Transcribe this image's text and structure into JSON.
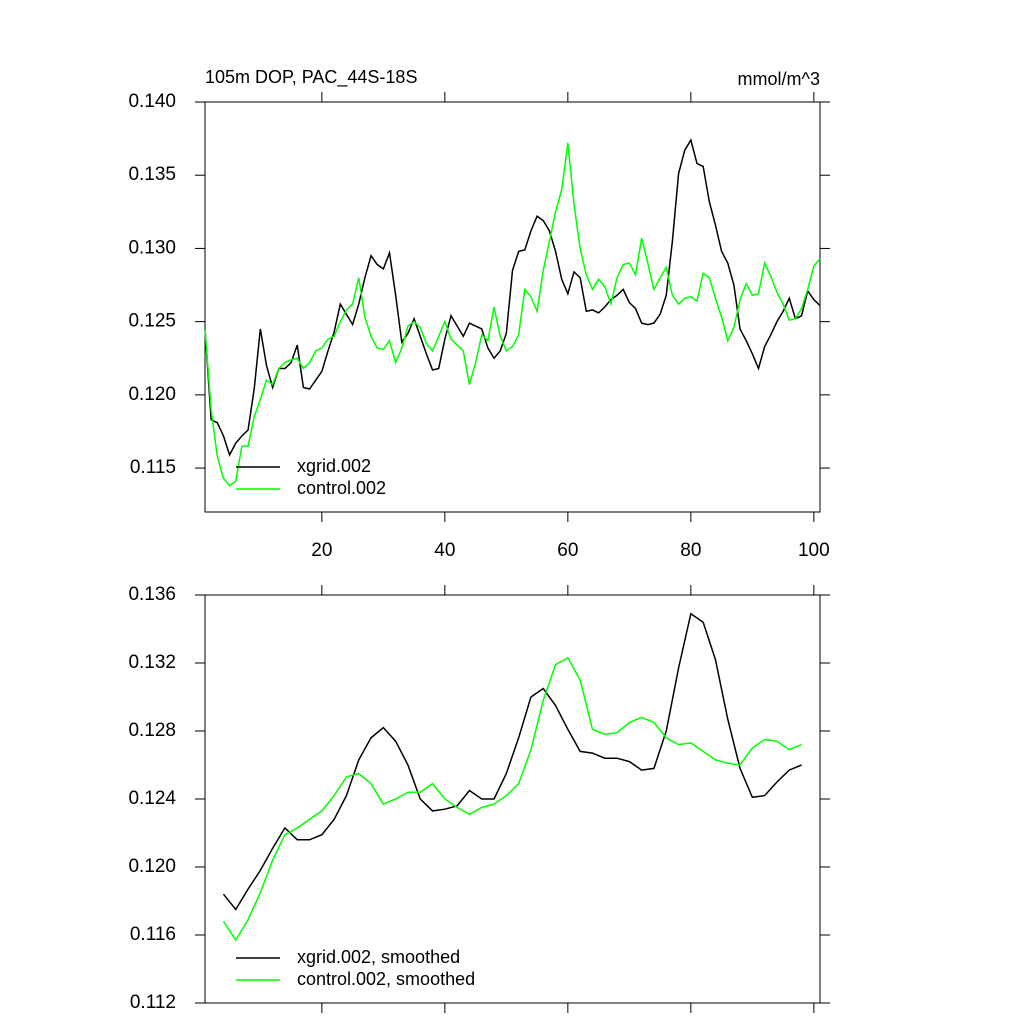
{
  "chart_data": [
    {
      "type": "line",
      "title": "105m DOP, PAC_44S-18S",
      "units": "mmol/m^3",
      "x": [
        1,
        2,
        3,
        4,
        5,
        6,
        7,
        8,
        9,
        10,
        11,
        12,
        13,
        14,
        15,
        16,
        17,
        18,
        19,
        20,
        21,
        22,
        23,
        24,
        25,
        26,
        27,
        28,
        29,
        30,
        31,
        32,
        33,
        34,
        35,
        36,
        37,
        38,
        39,
        40,
        41,
        42,
        43,
        44,
        45,
        46,
        47,
        48,
        49,
        50,
        51,
        52,
        53,
        54,
        55,
        56,
        57,
        58,
        59,
        60,
        61,
        62,
        63,
        64,
        65,
        66,
        67,
        68,
        69,
        70,
        71,
        72,
        73,
        74,
        75,
        76,
        77,
        78,
        79,
        80,
        81,
        82,
        83,
        84,
        85,
        86,
        87,
        88,
        89,
        90,
        91,
        92,
        93,
        94,
        95,
        96,
        97,
        98,
        99,
        100,
        101
      ],
      "series": [
        {
          "name": "xgrid.002",
          "color": "#000000",
          "values": [
            0.1245,
            0.1183,
            0.1181,
            0.1172,
            0.1159,
            0.1167,
            0.1172,
            0.1176,
            0.1204,
            0.1245,
            0.122,
            0.1205,
            0.1218,
            0.1218,
            0.1222,
            0.1234,
            0.1205,
            0.1204,
            0.121,
            0.1216,
            0.123,
            0.1243,
            0.1262,
            0.1255,
            0.1248,
            0.1262,
            0.128,
            0.1295,
            0.1289,
            0.1286,
            0.1297,
            0.1268,
            0.1236,
            0.1242,
            0.1252,
            0.124,
            0.1228,
            0.1217,
            0.1218,
            0.1238,
            0.1254,
            0.1247,
            0.124,
            0.1249,
            0.1247,
            0.1245,
            0.1232,
            0.1225,
            0.123,
            0.1242,
            0.1285,
            0.1298,
            0.1299,
            0.1312,
            0.1322,
            0.1319,
            0.1312,
            0.1298,
            0.1279,
            0.1269,
            0.1284,
            0.128,
            0.1257,
            0.1258,
            0.1256,
            0.126,
            0.1265,
            0.1268,
            0.1272,
            0.1263,
            0.1259,
            0.1249,
            0.1248,
            0.1249,
            0.1255,
            0.1268,
            0.1305,
            0.1351,
            0.1367,
            0.1374,
            0.1358,
            0.1356,
            0.1332,
            0.1316,
            0.1298,
            0.129,
            0.1275,
            0.1245,
            0.1237,
            0.1228,
            0.1218,
            0.1233,
            0.1241,
            0.125,
            0.1257,
            0.1266,
            0.1252,
            0.1254,
            0.1271,
            0.1265,
            0.1261
          ]
        },
        {
          "name": "control.002",
          "color": "#00ff00",
          "values": [
            0.1245,
            0.119,
            0.1158,
            0.1143,
            0.1138,
            0.1141,
            0.1165,
            0.1165,
            0.1185,
            0.1197,
            0.121,
            0.1207,
            0.1218,
            0.1222,
            0.1224,
            0.1225,
            0.1218,
            0.1222,
            0.123,
            0.1232,
            0.1238,
            0.124,
            0.125,
            0.1258,
            0.1262,
            0.128,
            0.1253,
            0.124,
            0.1232,
            0.1231,
            0.1237,
            0.1222,
            0.1232,
            0.1247,
            0.125,
            0.1246,
            0.1235,
            0.123,
            0.124,
            0.125,
            0.1238,
            0.1234,
            0.123,
            0.1207,
            0.1222,
            0.1241,
            0.1237,
            0.126,
            0.124,
            0.123,
            0.1233,
            0.1241,
            0.1272,
            0.1267,
            0.1257,
            0.1285,
            0.1305,
            0.1325,
            0.134,
            0.1372,
            0.133,
            0.13,
            0.1282,
            0.1272,
            0.1279,
            0.1274,
            0.1262,
            0.128,
            0.1289,
            0.129,
            0.1282,
            0.1307,
            0.129,
            0.1272,
            0.128,
            0.1287,
            0.1268,
            0.1262,
            0.1266,
            0.1267,
            0.1264,
            0.1283,
            0.128,
            0.1266,
            0.1253,
            0.1237,
            0.1246,
            0.1265,
            0.1276,
            0.1268,
            0.1269,
            0.129,
            0.1281,
            0.127,
            0.1262,
            0.1251,
            0.1252,
            0.1259,
            0.1272,
            0.1288,
            0.1293
          ]
        }
      ],
      "xlim": [
        1,
        101
      ],
      "xticks": [
        20,
        40,
        60,
        80,
        100
      ],
      "ylim": [
        0.112,
        0.14
      ],
      "yticks": [
        {
          "value": 0.14,
          "label": "0.140"
        },
        0.135,
        {
          "value": 0.13,
          "label": "0.130"
        },
        0.125,
        {
          "value": 0.12,
          "label": "0.120"
        },
        0.115
      ],
      "legend": "lower left"
    },
    {
      "type": "line",
      "x": [
        4,
        6,
        8,
        10,
        12,
        14,
        16,
        18,
        20,
        22,
        24,
        26,
        28,
        30,
        32,
        34,
        36,
        38,
        40,
        42,
        44,
        46,
        48,
        50,
        52,
        54,
        56,
        58,
        60,
        62,
        64,
        66,
        68,
        70,
        72,
        74,
        76,
        78,
        80,
        82,
        84,
        86,
        88,
        90,
        92,
        94,
        96,
        98
      ],
      "series": [
        {
          "name": "xgrid.002, smoothed",
          "color": "#000000",
          "values": [
            0.1184,
            0.1175,
            0.1187,
            0.1198,
            0.1211,
            0.1223,
            0.1216,
            0.1216,
            0.1219,
            0.1228,
            0.1242,
            0.1263,
            0.1276,
            0.1282,
            0.1274,
            0.126,
            0.124,
            0.1233,
            0.1234,
            0.1236,
            0.1245,
            0.124,
            0.124,
            0.1255,
            0.1276,
            0.13,
            0.1305,
            0.1295,
            0.1281,
            0.1268,
            0.1267,
            0.1264,
            0.1264,
            0.1262,
            0.1257,
            0.1258,
            0.128,
            0.1317,
            0.1349,
            0.1344,
            0.1322,
            0.1287,
            0.1258,
            0.1241,
            0.1242,
            0.125,
            0.1257,
            0.126
          ]
        },
        {
          "name": "control.002, smoothed",
          "color": "#00ff00",
          "values": [
            0.1168,
            0.1157,
            0.1169,
            0.1185,
            0.1204,
            0.1219,
            0.1223,
            0.1228,
            0.1233,
            0.1242,
            0.1253,
            0.1255,
            0.1249,
            0.1237,
            0.124,
            0.1244,
            0.1244,
            0.1249,
            0.124,
            0.1235,
            0.1231,
            0.1235,
            0.1237,
            0.1242,
            0.1249,
            0.1269,
            0.1298,
            0.1319,
            0.1323,
            0.131,
            0.1281,
            0.1278,
            0.1279,
            0.1285,
            0.1288,
            0.1285,
            0.1276,
            0.1272,
            0.1273,
            0.1268,
            0.1263,
            0.1261,
            0.126,
            0.127,
            0.1275,
            0.1274,
            0.1269,
            0.1272
          ]
        }
      ],
      "xlim": [
        1,
        101
      ],
      "xticks": [
        20,
        40,
        60,
        80,
        100
      ],
      "xtick_labels": false,
      "ylim": [
        0.112,
        0.136
      ],
      "yticks": [
        0.136,
        0.132,
        0.128,
        0.124,
        {
          "value": 0.12,
          "label": "0.120"
        },
        0.116,
        0.112
      ],
      "legend": "lower left"
    }
  ]
}
